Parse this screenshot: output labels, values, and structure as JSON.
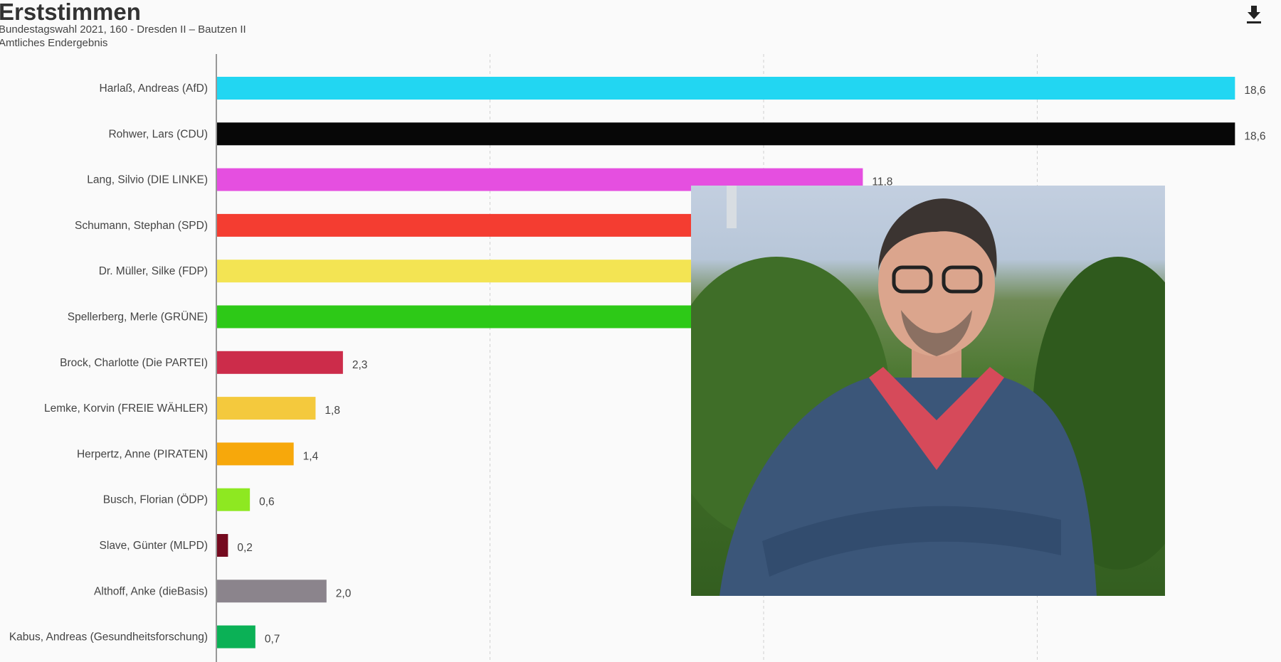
{
  "header": {
    "title": "Erststimmen",
    "subtitle": "Bundestagswahl 2021, 160 - Dresden II – Bautzen II",
    "status": "Amtliches Endergebnis",
    "download_icon": "download-icon"
  },
  "chart_data": {
    "type": "bar",
    "orientation": "horizontal",
    "title": "Erststimmen",
    "subtitle": "Bundestagswahl 2021, 160 - Dresden II – Bautzen II",
    "xlim": [
      0,
      20
    ],
    "grid_x": [
      5,
      10,
      15
    ],
    "grid": "vertical dashed",
    "categories": [
      "Harlaß, Andreas (AfD)",
      "Rohwer, Lars (CDU)",
      "Lang, Silvio (DIE LINKE)",
      "Schumann, Stephan (SPD)",
      "Dr. Müller, Silke (FDP)",
      "Spellerberg, Merle (GRÜNE)",
      "Brock, Charlotte (Die PARTEI)",
      "Lemke, Korvin (FREIE WÄHLER)",
      "Herpertz, Anne (PIRATEN)",
      "Busch, Florian (ÖDP)",
      "Slave, Günter (MLPD)",
      "Althoff, Anke (dieBasis)",
      "Kabus, Andreas (Gesundheitsforschung)"
    ],
    "values": [
      18.6,
      18.6,
      11.8,
      null,
      null,
      null,
      2.3,
      1.8,
      1.4,
      0.6,
      0.2,
      2.0,
      0.7
    ],
    "value_labels": [
      "18,6",
      "18,6",
      "11,8",
      "",
      "",
      "",
      "2,3",
      "1,8",
      "1,4",
      "0,6",
      "0,2",
      "2,0",
      "0,7"
    ],
    "colors": [
      "#22d6f2",
      "#070707",
      "#e54fe0",
      "#f43d31",
      "#f3e453",
      "#2dc917",
      "#cc2c4a",
      "#f4c93d",
      "#f7a80b",
      "#8ee821",
      "#750a1f",
      "#8b848c",
      "#0bb156"
    ]
  },
  "overlay_photo": "portrait-photo"
}
